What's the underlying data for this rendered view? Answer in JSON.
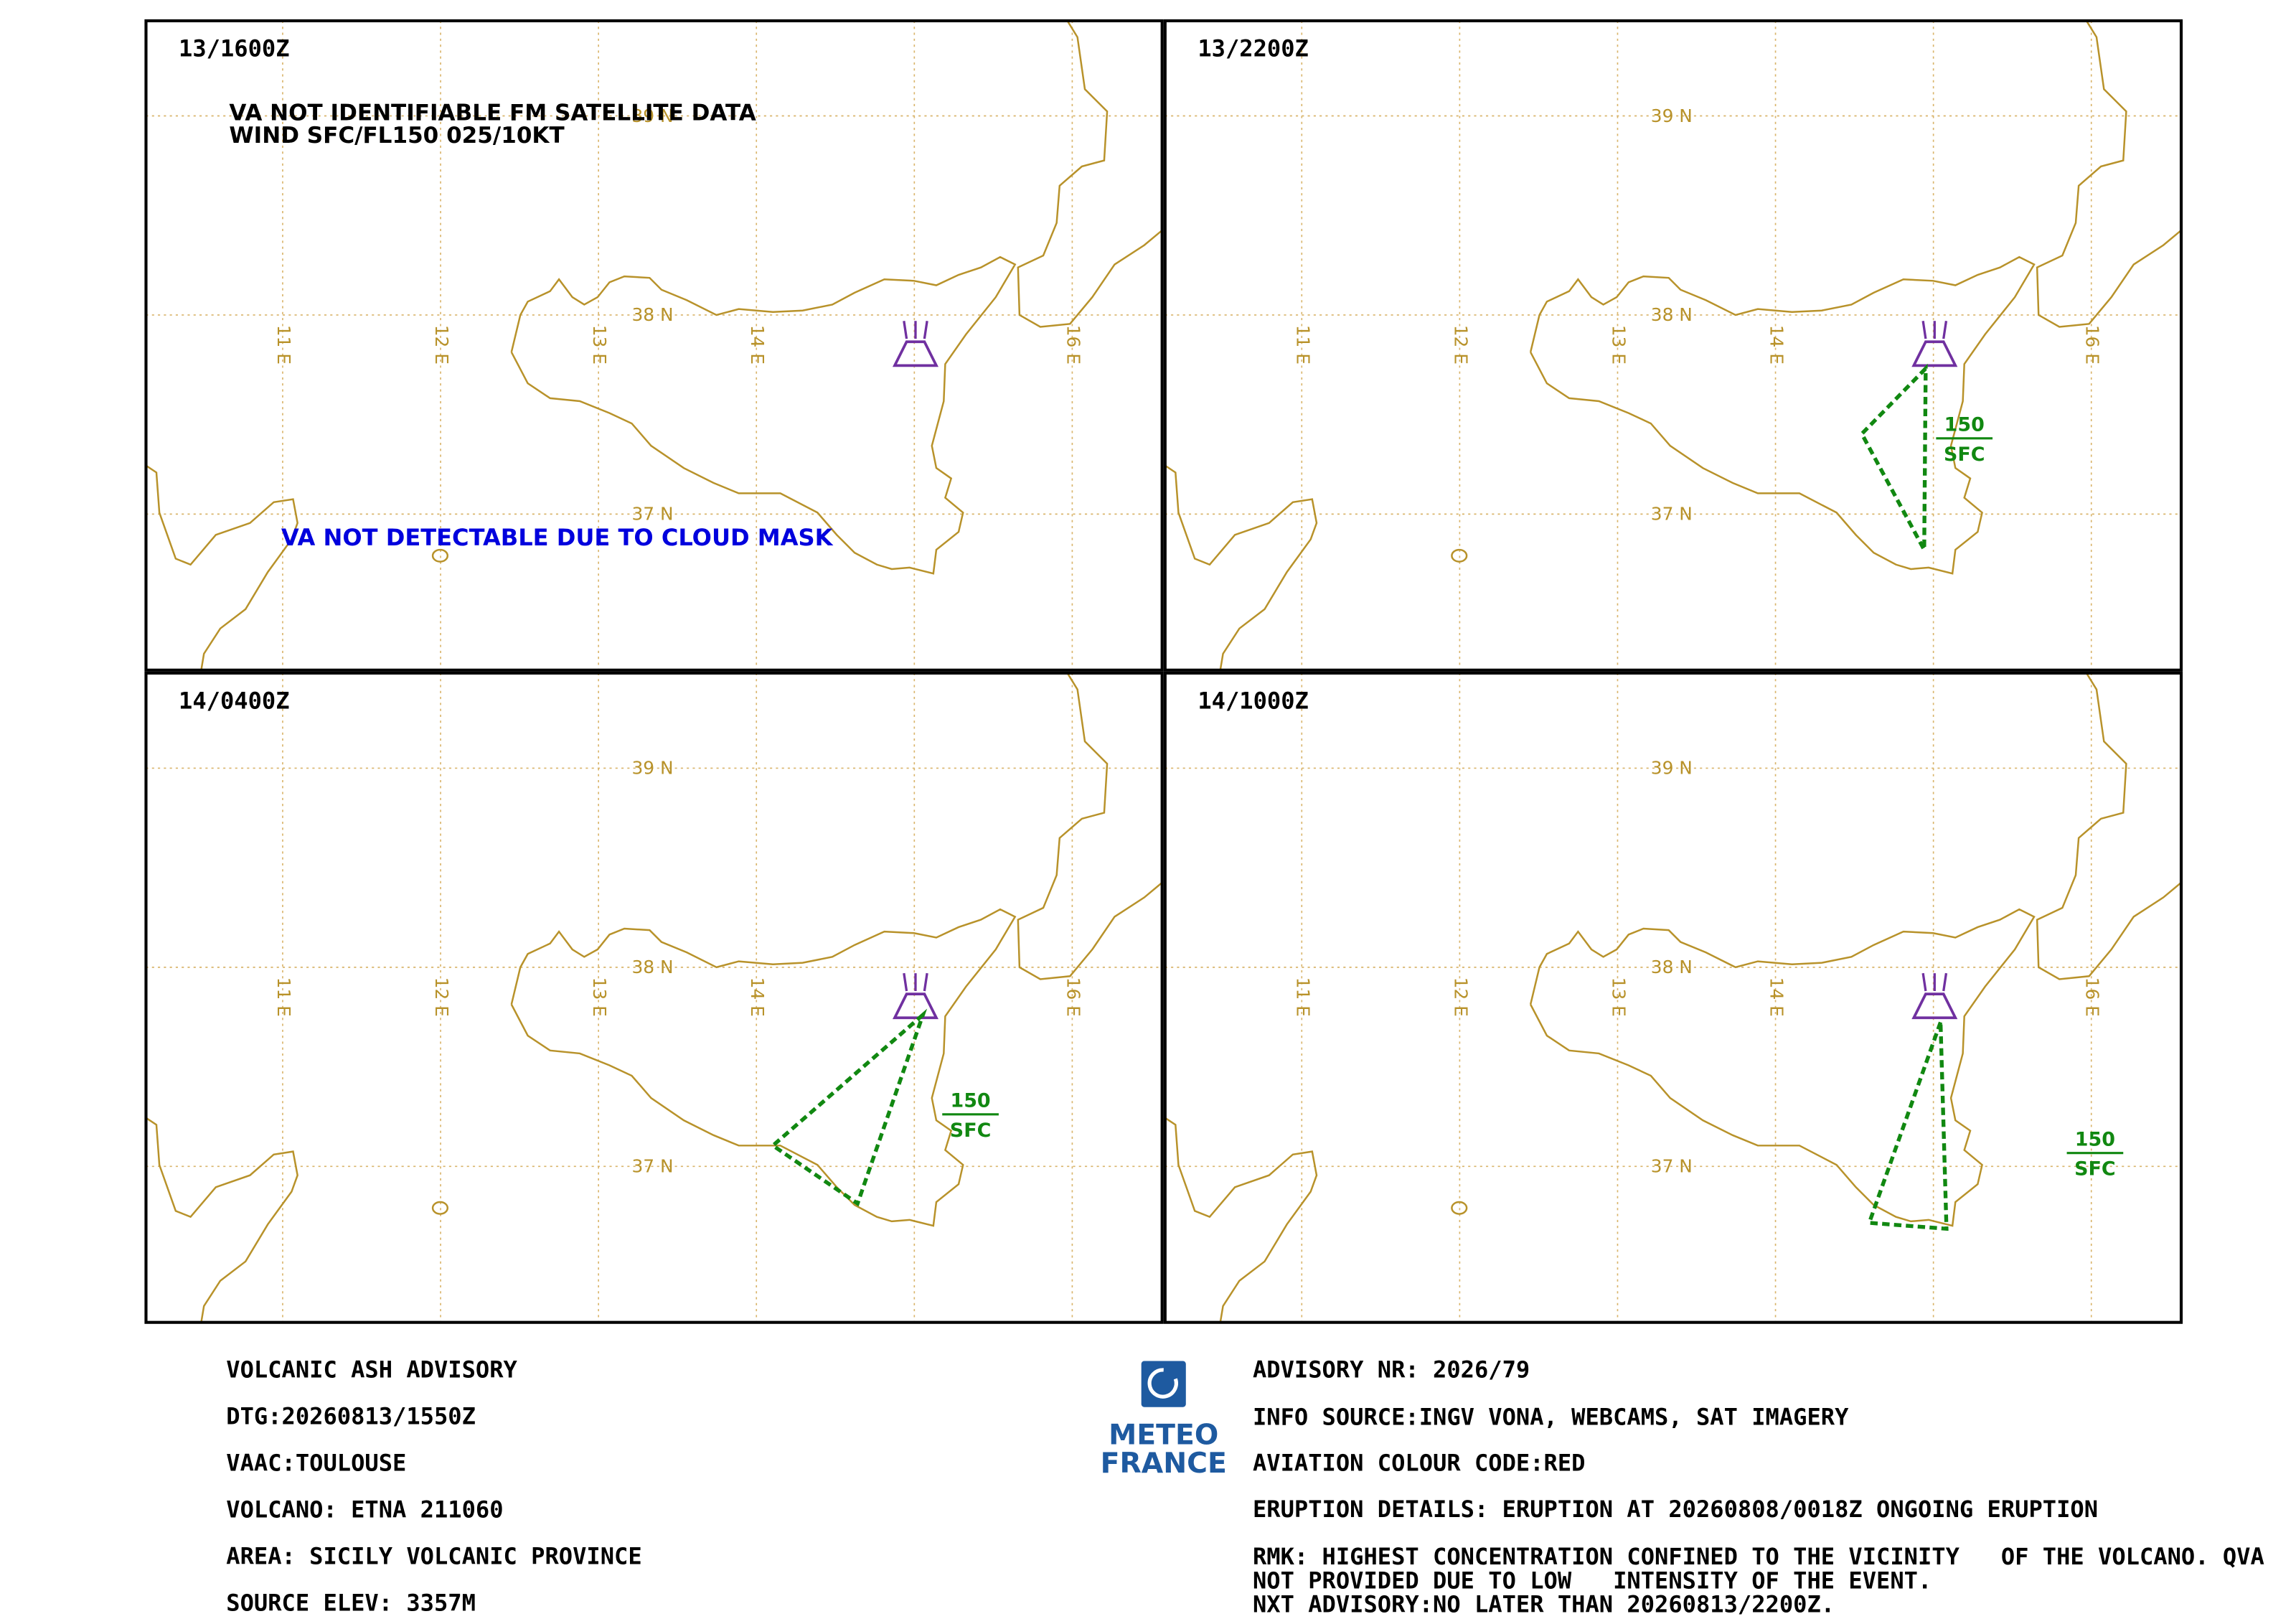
{
  "panels": [
    {
      "time": "13/1600Z",
      "notes": [
        "VA NOT IDENTIFIABLE FM SATELLITE DATA",
        "WIND SFC/FL150 025/10KT"
      ],
      "remark": "VA NOT DETECTABLE DUE TO CLOUD MASK"
    },
    {
      "time": "13/2200Z",
      "top": "150",
      "base": "SFC"
    },
    {
      "time": "14/0400Z",
      "top": "150",
      "base": "SFC"
    },
    {
      "time": "14/1000Z",
      "top": "150",
      "base": "SFC"
    }
  ],
  "grid": {
    "lon": [
      "11 E",
      "12 E",
      "13 E",
      "14 E",
      "16 E"
    ],
    "lat": [
      "37 N",
      "38 N",
      "39 N"
    ]
  },
  "logo": {
    "line1": "METEO",
    "line2": "FRANCE"
  },
  "advisory": {
    "left": [
      "VOLCANIC ASH ADVISORY",
      "DTG:20260813/1550Z",
      "VAAC:TOULOUSE",
      "VOLCANO: ETNA 211060",
      "AREA: SICILY VOLCANIC PROVINCE",
      "SOURCE ELEV: 3357M"
    ],
    "right": [
      "ADVISORY NR: 2026/79",
      "INFO SOURCE:INGV VONA, WEBCAMS, SAT IMAGERY",
      "AVIATION COLOUR CODE:RED",
      "ERUPTION DETAILS: ERUPTION AT 20260808/0018Z ONGOING ERUPTION",
      "RMK: HIGHEST CONCENTRATION CONFINED TO THE VICINITY   OF THE VOLCANO. QVA",
      "NOT PROVIDED DUE TO LOW   INTENSITY OF THE EVENT.",
      "NXT ADVISORY:NO LATER THAN 20260813/2200Z."
    ]
  }
}
